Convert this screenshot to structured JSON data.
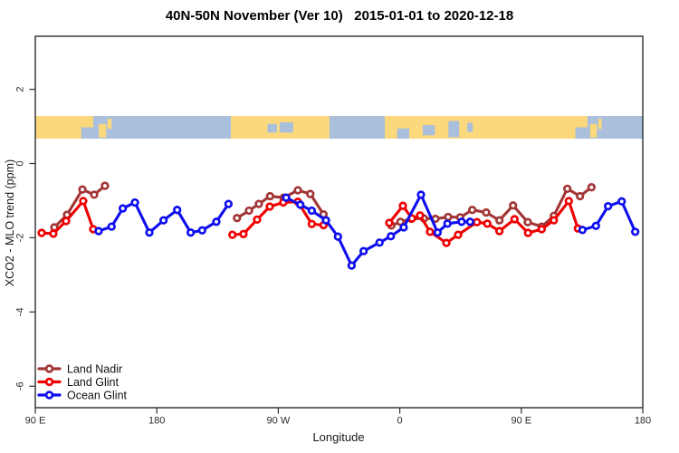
{
  "title": "40N-50N November (Ver 10)   2015-01-01 to 2020-12-18",
  "chart_data": {
    "type": "line",
    "xlabel": "Longitude",
    "ylabel": "XCO2 - MLO trend (ppm)",
    "xlim": [
      90,
      540
    ],
    "ylim": [
      -6.58,
      3.43
    ],
    "grid": false,
    "legend_position": "bottom-left",
    "x_ticks": [
      {
        "pos": 90,
        "label": "90 E"
      },
      {
        "pos": 180,
        "label": "180"
      },
      {
        "pos": 270,
        "label": "90 W"
      },
      {
        "pos": 360,
        "label": "0"
      },
      {
        "pos": 450,
        "label": "90 E"
      },
      {
        "pos": 540,
        "label": "180"
      }
    ],
    "y_ticks": [
      {
        "pos": 2,
        "label": "2"
      },
      {
        "pos": 0,
        "label": "0"
      },
      {
        "pos": -2,
        "label": "-2"
      },
      {
        "pos": -4,
        "label": "-4"
      },
      {
        "pos": -6,
        "label": "-6"
      }
    ],
    "map_band": {
      "y_range": [
        0.67,
        1.28
      ],
      "land_color": "#FBD87C",
      "ocean_color": "#A9BFDB",
      "segments": [
        {
          "type": "land",
          "from": 90,
          "to": 132.9
        },
        {
          "type": "ocean",
          "from": 132.9,
          "to": 234.9
        },
        {
          "type": "land",
          "from": 234.9,
          "to": 307.9
        },
        {
          "type": "ocean",
          "from": 307.9,
          "to": 348.9
        },
        {
          "type": "land",
          "from": 348.9,
          "to": 499
        },
        {
          "type": "ocean",
          "from": 499,
          "to": 540
        }
      ],
      "patches": [
        {
          "type": "ocean",
          "from": 124,
          "to": 132.9,
          "top": 0.5,
          "h": 0.5
        },
        {
          "type": "land",
          "from": 137,
          "to": 142.5,
          "top": 0.35,
          "h": 0.6
        },
        {
          "type": "land",
          "from": 143.5,
          "to": 146.5,
          "top": 0.12,
          "h": 0.45
        },
        {
          "type": "ocean",
          "from": 262,
          "to": 269,
          "top": 0.35,
          "h": 0.38
        },
        {
          "type": "ocean",
          "from": 271,
          "to": 281,
          "top": 0.28,
          "h": 0.45
        },
        {
          "type": "ocean",
          "from": 358,
          "to": 367,
          "top": 0.55,
          "h": 0.45
        },
        {
          "type": "ocean",
          "from": 377,
          "to": 386,
          "top": 0.4,
          "h": 0.45
        },
        {
          "type": "ocean",
          "from": 396,
          "to": 404,
          "top": 0.22,
          "h": 0.72
        },
        {
          "type": "ocean",
          "from": 410,
          "to": 414,
          "top": 0.3,
          "h": 0.4
        },
        {
          "type": "ocean",
          "from": 490,
          "to": 499,
          "top": 0.5,
          "h": 0.5
        },
        {
          "type": "land",
          "from": 501,
          "to": 506,
          "top": 0.35,
          "h": 0.6
        },
        {
          "type": "land",
          "from": 507,
          "to": 509.5,
          "top": 0.12,
          "h": 0.45
        }
      ]
    },
    "series": [
      {
        "name": "Land Nadir",
        "color": "#A23535",
        "segments": [
          [
            [
              104.1,
              -1.72
            ],
            [
              113.5,
              -1.38
            ],
            [
              124.9,
              -0.7
            ],
            [
              133.6,
              -0.84
            ],
            [
              141.6,
              -0.6
            ]
          ],
          [
            [
              239.4,
              -1.47
            ],
            [
              248.3,
              -1.27
            ],
            [
              255.6,
              -1.09
            ],
            [
              263.9,
              -0.88
            ],
            [
              274.0,
              -0.92
            ],
            [
              284.5,
              -0.72
            ],
            [
              293.7,
              -0.82
            ],
            [
              303.5,
              -1.37
            ]
          ],
          [
            [
              353.8,
              -1.67
            ],
            [
              360.5,
              -1.57
            ],
            [
              368.5,
              -1.49
            ],
            [
              377.9,
              -1.48
            ],
            [
              386.4,
              -1.49
            ],
            [
              395.8,
              -1.44
            ],
            [
              404.7,
              -1.45
            ],
            [
              413.7,
              -1.25
            ],
            [
              424.0,
              -1.32
            ],
            [
              433.8,
              -1.53
            ],
            [
              443.9,
              -1.13
            ],
            [
              454.8,
              -1.58
            ],
            [
              465.1,
              -1.7
            ],
            [
              474.1,
              -1.41
            ],
            [
              484.1,
              -0.68
            ],
            [
              493.5,
              -0.88
            ],
            [
              502.0,
              -0.64
            ]
          ]
        ]
      },
      {
        "name": "Land Glint",
        "color": "#EE0000",
        "segments": [
          [
            [
              94.7,
              -1.87
            ],
            [
              103.4,
              -1.89
            ],
            [
              112.8,
              -1.55
            ],
            [
              125.5,
              -1.01
            ],
            [
              132.9,
              -1.77
            ]
          ],
          [
            [
              236.0,
              -1.92
            ],
            [
              244.2,
              -1.9
            ],
            [
              254.3,
              -1.51
            ],
            [
              263.7,
              -1.16
            ],
            [
              273.7,
              -1.05
            ],
            [
              284.5,
              -1.03
            ],
            [
              294.8,
              -1.63
            ],
            [
              303.5,
              -1.66
            ]
          ],
          [
            [
              352.2,
              -1.6
            ],
            [
              362.3,
              -1.14
            ],
            [
              369.0,
              -1.48
            ],
            [
              375.0,
              -1.4
            ],
            [
              382.4,
              -1.84
            ],
            [
              394.5,
              -2.14
            ],
            [
              403.2,
              -1.92
            ],
            [
              417.1,
              -1.58
            ],
            [
              424.8,
              -1.62
            ],
            [
              433.8,
              -1.82
            ],
            [
              445.0,
              -1.5
            ],
            [
              455.0,
              -1.87
            ],
            [
              465.1,
              -1.77
            ],
            [
              474.1,
              -1.53
            ],
            [
              485.2,
              -1.01
            ],
            [
              491.9,
              -1.75
            ]
          ]
        ]
      },
      {
        "name": "Ocean Glint",
        "color": "#0E0EEE",
        "segments": [
          [
            [
              136.9,
              -1.82
            ],
            [
              146.5,
              -1.7
            ],
            [
              154.8,
              -1.21
            ],
            [
              163.8,
              -1.05
            ],
            [
              174.5,
              -1.86
            ],
            [
              185.0,
              -1.53
            ],
            [
              195.1,
              -1.25
            ],
            [
              205.1,
              -1.86
            ],
            [
              213.6,
              -1.8
            ],
            [
              224.1,
              -1.57
            ],
            [
              233.1,
              -1.09
            ]
          ],
          [
            [
              275.8,
              -0.92
            ],
            [
              286.3,
              -1.11
            ],
            [
              294.8,
              -1.27
            ],
            [
              305.3,
              -1.53
            ],
            [
              314.2,
              -1.97
            ],
            [
              324.3,
              -2.75
            ],
            [
              333.2,
              -2.36
            ],
            [
              345.0,
              -2.13
            ],
            [
              353.4,
              -1.96
            ],
            [
              362.9,
              -1.72
            ],
            [
              375.7,
              -0.84
            ],
            [
              388.0,
              -1.86
            ],
            [
              395.3,
              -1.62
            ],
            [
              405.8,
              -1.57
            ],
            [
              412.1,
              -1.57
            ]
          ],
          [
            [
              495.3,
              -1.79
            ],
            [
              505.3,
              -1.68
            ],
            [
              514.3,
              -1.15
            ],
            [
              524.4,
              -1.02
            ],
            [
              534.4,
              -1.84
            ]
          ]
        ]
      }
    ]
  }
}
